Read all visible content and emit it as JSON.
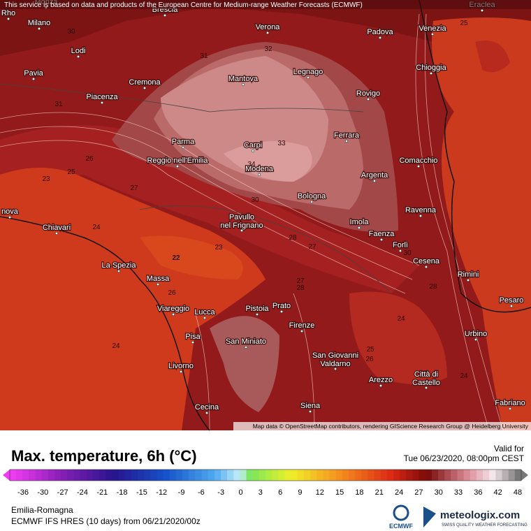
{
  "disclaimer": "This service is based on data and products of the European Centre for Medium-range Weather Forecasts (ECMWF)",
  "attribution": "Map data © OpenStreetMap contributors, rendering GIScience Research Group @ Heidelberg University",
  "cities": [
    "Monza",
    "Rho",
    "Brescia",
    "Eraclea",
    "Milano",
    "Verona",
    "Padova",
    "Venezia",
    "Lodi",
    "Pavia",
    "Cremona",
    "Mantova",
    "Legnago",
    "Rovigo",
    "Chioggia",
    "Piacenza",
    "Ferrara",
    "Parma",
    "Carpi",
    "Reggio nell'Emilia",
    "Modena",
    "Comacchio",
    "Argenta",
    "Bologna",
    "Ravenna",
    "Imola",
    [
      "Pavullo",
      "nel Frignano"
    ],
    "Faenza",
    "Forlì",
    "nova",
    "Chiavari",
    "Cesena",
    "La Spezia",
    "Rimini",
    "Massa",
    "Viareggio",
    "Pistoia",
    "Prato",
    "Lucca",
    "Pesaro",
    "Firenze",
    "Pisa",
    "Urbino",
    "San Miniato",
    [
      "San Giovanni",
      "Valdarno"
    ],
    "Arezzo",
    [
      "Città di",
      "Castello"
    ],
    "Livorno",
    "Cecina",
    "Siena",
    "Fabriano"
  ],
  "contour_labels": [
    30,
    31,
    32,
    31,
    33,
    34,
    26,
    25,
    23,
    27,
    24,
    22,
    23,
    26,
    30,
    28,
    27,
    27,
    28,
    28,
    24,
    25,
    26,
    24,
    25,
    24,
    30
  ],
  "title": "Max. temperature, 6h (°C)",
  "valid_label": "Valid for",
  "valid_time": "Tue 06/23/2020, 08:00pm CEST",
  "colorbar": {
    "ticks": [
      -36,
      -30,
      -27,
      -24,
      -21,
      -18,
      -15,
      -12,
      -9,
      -6,
      -3,
      0,
      3,
      6,
      9,
      12,
      15,
      18,
      21,
      24,
      27,
      30,
      33,
      36,
      42,
      48
    ]
  },
  "region": "Emilia-Romagna",
  "model_run": "ECMWF IFS HRES (10 days) from 06/21/2020/00z",
  "logos": {
    "ecmwf": "ECMWF",
    "meteologix": "meteologix.com",
    "tagline": "SWISS QUALITY WEATHER FORECASTING"
  }
}
